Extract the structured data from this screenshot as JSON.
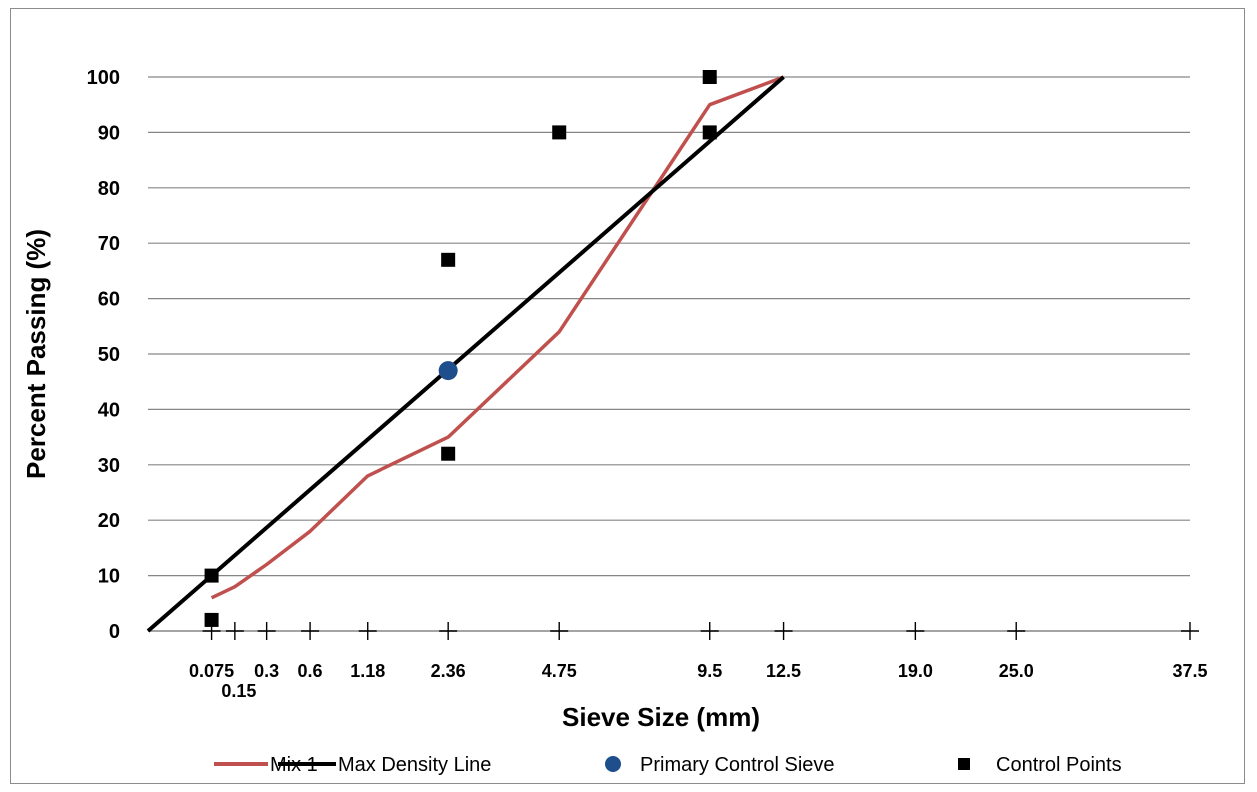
{
  "chart_data": {
    "type": "line",
    "title": "",
    "xlabel": "Sieve Size (mm)",
    "ylabel": "Percent Passing (%)",
    "x_scale": "power-0.45",
    "xlim": [
      0,
      37.5
    ],
    "ylim": [
      0,
      100
    ],
    "y_ticks": [
      "0",
      "10",
      "20",
      "30",
      "40",
      "50",
      "60",
      "70",
      "80",
      "90",
      "100"
    ],
    "x_ticks": [
      {
        "value": 0.075,
        "label": "0.075"
      },
      {
        "value": 0.15,
        "label": "0.15"
      },
      {
        "value": 0.3,
        "label": "0.3"
      },
      {
        "value": 0.6,
        "label": "0.6"
      },
      {
        "value": 1.18,
        "label": "1.18"
      },
      {
        "value": 2.36,
        "label": "2.36"
      },
      {
        "value": 4.75,
        "label": "4.75"
      },
      {
        "value": 9.5,
        "label": "9.5"
      },
      {
        "value": 12.5,
        "label": "12.5"
      },
      {
        "value": 19.0,
        "label": "19.0"
      },
      {
        "value": 25.0,
        "label": "25.0"
      },
      {
        "value": 37.5,
        "label": "37.5"
      }
    ],
    "grid": "horizontal",
    "legend_position": "bottom",
    "series": [
      {
        "name": "Mix 1",
        "kind": "line",
        "color": "#c0504d",
        "points": [
          [
            0.075,
            6
          ],
          [
            0.15,
            8
          ],
          [
            0.3,
            12
          ],
          [
            0.6,
            18
          ],
          [
            1.18,
            28
          ],
          [
            2.36,
            35
          ],
          [
            4.75,
            54
          ],
          [
            9.5,
            95
          ],
          [
            12.5,
            100
          ]
        ]
      },
      {
        "name": "Max Density Line",
        "kind": "line",
        "color": "#000000",
        "points": [
          [
            0,
            0
          ],
          [
            12.5,
            100
          ]
        ]
      },
      {
        "name": "Primary Control Sieve",
        "kind": "marker-circle",
        "color": "#1f4e8c",
        "points": [
          [
            2.36,
            47
          ]
        ]
      },
      {
        "name": "Control Points",
        "kind": "marker-square",
        "color": "#000000",
        "points": [
          [
            0.075,
            2
          ],
          [
            0.075,
            10
          ],
          [
            2.36,
            32
          ],
          [
            2.36,
            67
          ],
          [
            4.75,
            90
          ],
          [
            9.5,
            90
          ],
          [
            9.5,
            100
          ]
        ]
      }
    ]
  }
}
